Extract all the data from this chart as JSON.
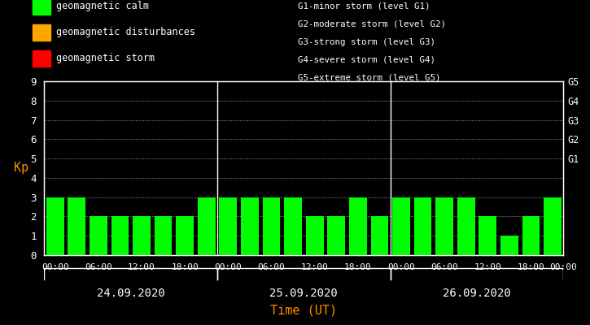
{
  "background_color": "#000000",
  "bar_color_calm": "#00ff00",
  "bar_color_dist": "#ffa500",
  "bar_color_storm": "#ff0000",
  "kp_values": [
    3,
    3,
    2,
    2,
    2,
    2,
    2,
    3,
    3,
    3,
    3,
    3,
    2,
    2,
    3,
    2,
    3,
    3,
    3,
    3,
    2,
    1,
    2,
    3
  ],
  "days": [
    "24.09.2020",
    "25.09.2020",
    "26.09.2020"
  ],
  "ylabel": "Kp",
  "xlabel": "Time (UT)",
  "ylim": [
    0,
    9
  ],
  "yticks": [
    0,
    1,
    2,
    3,
    4,
    5,
    6,
    7,
    8,
    9
  ],
  "right_labels": [
    "G5",
    "G4",
    "G3",
    "G2",
    "G1"
  ],
  "right_label_yvals": [
    9,
    8,
    7,
    6,
    5
  ],
  "legend_entries": [
    {
      "label": "geomagnetic calm",
      "color": "#00ff00"
    },
    {
      "label": "geomagnetic disturbances",
      "color": "#ffa500"
    },
    {
      "label": "geomagnetic storm",
      "color": "#ff0000"
    }
  ],
  "storm_legend_text": [
    "G1-minor storm (level G1)",
    "G2-moderate storm (level G2)",
    "G3-strong storm (level G3)",
    "G4-severe storm (level G4)",
    "G5-extreme storm (level G5)"
  ],
  "tick_label_color": "#ffffff",
  "axis_color": "#ffffff",
  "grid_color": "#ffffff",
  "ylabel_color": "#ff8c00",
  "xlabel_color": "#ff8c00",
  "font_family": "monospace",
  "legend_square_size": 0.012,
  "time_labels": [
    "00:00",
    "06:00",
    "12:00",
    "18:00",
    "00:00"
  ]
}
